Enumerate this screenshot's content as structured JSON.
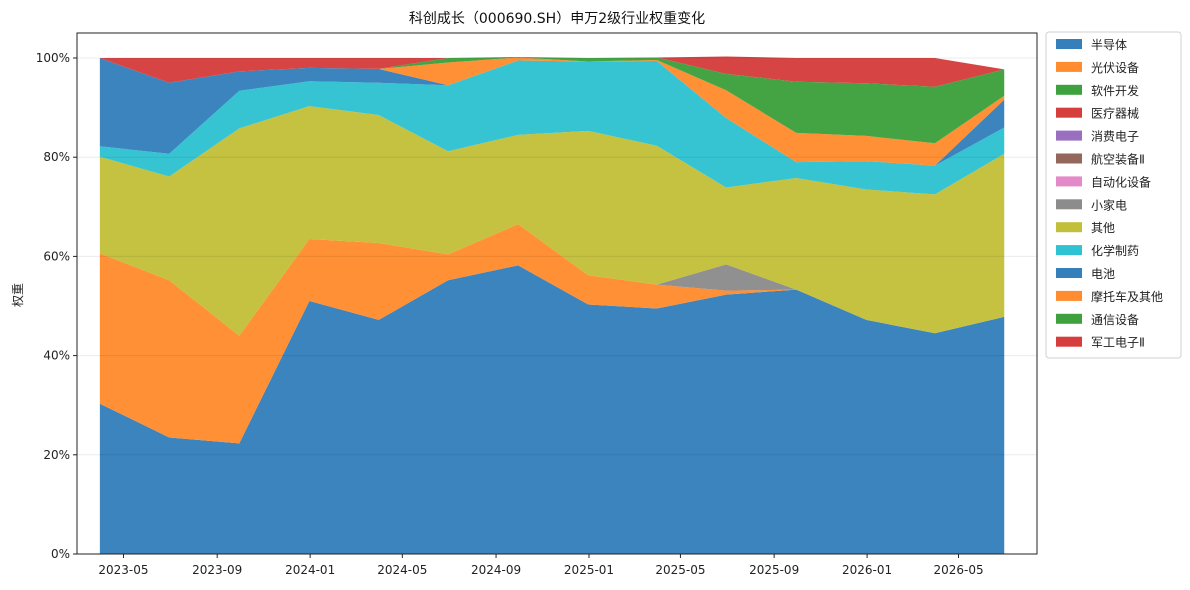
{
  "chart_data": {
    "type": "area",
    "title": "科创成长（000690.SH）申万2级行业权重变化",
    "xlabel": "",
    "ylabel": "权重",
    "ylim": [
      0,
      100
    ],
    "yticks": [
      0,
      20,
      40,
      60,
      80,
      100
    ],
    "ytick_labels": [
      "0%",
      "20%",
      "40%",
      "60%",
      "80%",
      "100%"
    ],
    "xlim": [
      "2023-03-01",
      "2026-08-12"
    ],
    "xticks": [
      "2023-05-01",
      "2023-09-01",
      "2024-01-01",
      "2024-05-01",
      "2024-09-01",
      "2025-01-01",
      "2025-05-01",
      "2025-09-01",
      "2026-01-01",
      "2026-05-01"
    ],
    "xtick_labels": [
      "2023-05",
      "2023-09",
      "2024-01",
      "2024-05",
      "2024-09",
      "2025-01",
      "2025-05",
      "2025-09",
      "2026-01",
      "2026-05"
    ],
    "grid": "horizontal",
    "legend_position": "outside-right",
    "x": [
      "2023-03-31",
      "2023-06-30",
      "2023-09-30",
      "2023-12-31",
      "2024-03-31",
      "2024-06-30",
      "2024-09-30",
      "2024-12-31",
      "2025-03-31",
      "2025-06-30",
      "2025-09-30",
      "2025-12-31",
      "2026-03-31",
      "2026-06-30"
    ],
    "series": [
      {
        "name": "半导体",
        "color": "#3580bb",
        "values": [
          30.3,
          23.5,
          22.3,
          51.0,
          47.2,
          55.2,
          58.2,
          50.3,
          49.5,
          52.3,
          53.3,
          47.2,
          44.5,
          47.8
        ]
      },
      {
        "name": "光伏设备",
        "color": "#ff8c2e",
        "values": [
          30.3,
          31.7,
          21.7,
          12.5,
          15.5,
          5.2,
          8.3,
          5.9,
          4.8,
          0.8,
          0,
          0,
          0,
          0
        ]
      },
      {
        "name": "软件开发",
        "color": "#3ea13e",
        "values": [
          0,
          0,
          0,
          0,
          0,
          0,
          0,
          0,
          0,
          0,
          0,
          0,
          0,
          0
        ]
      },
      {
        "name": "医疗器械",
        "color": "#d63e3e",
        "values": [
          0,
          0,
          0,
          0,
          0,
          0,
          0,
          0,
          0,
          0,
          0,
          0,
          0,
          0
        ]
      },
      {
        "name": "消费电子",
        "color": "#9a6fc0",
        "values": [
          0,
          0,
          0,
          0,
          0,
          0,
          0,
          0,
          0,
          0,
          0,
          0,
          0,
          0
        ]
      },
      {
        "name": "航空装备Ⅱ",
        "color": "#94675d",
        "values": [
          0,
          0,
          0,
          0,
          0,
          0,
          0,
          0,
          0,
          0,
          0,
          0,
          0,
          0
        ]
      },
      {
        "name": "自动化设备",
        "color": "#e58ac9",
        "values": [
          0,
          0,
          0,
          0,
          0,
          0,
          0,
          0,
          0,
          0,
          0,
          0,
          0,
          0
        ]
      },
      {
        "name": "小家电",
        "color": "#8c8c8c",
        "values": [
          0,
          0,
          0,
          0,
          0,
          0,
          0,
          0,
          0,
          5.3,
          0,
          0,
          0,
          0
        ]
      },
      {
        "name": "其他",
        "color": "#c2c03a",
        "values": [
          19.5,
          20.9,
          41.8,
          26.8,
          25.8,
          20.8,
          18.0,
          29.1,
          28.0,
          15.5,
          22.5,
          26.3,
          28.0,
          32.9
        ]
      },
      {
        "name": "化学制药",
        "color": "#2fc2d2",
        "values": [
          2.1,
          4.6,
          7.6,
          5.0,
          6.5,
          13.3,
          15.0,
          14.0,
          17.1,
          14.0,
          3.2,
          5.7,
          5.8,
          5.3
        ]
      },
      {
        "name": "电池",
        "color": "#3580bb",
        "values": [
          17.8,
          14.3,
          3.9,
          2.7,
          2.8,
          0,
          0,
          0,
          0,
          0,
          0,
          0,
          0,
          5.6
        ]
      },
      {
        "name": "摩托车及其他",
        "color": "#ff8c2e",
        "values": [
          0,
          0,
          0,
          0,
          0,
          4.6,
          0.6,
          0,
          0.2,
          5.6,
          5.9,
          5.1,
          4.5,
          0.8
        ]
      },
      {
        "name": "通信设备",
        "color": "#3ea13e",
        "values": [
          0,
          0,
          0,
          0,
          0,
          0.9,
          0.1,
          0.7,
          0.5,
          3.3,
          10.3,
          10.6,
          11.4,
          5.3
        ]
      },
      {
        "name": "军工电子Ⅱ",
        "color": "#d63e3e",
        "values": [
          0,
          5.0,
          2.7,
          2.0,
          2.2,
          0,
          0,
          0,
          0,
          3.5,
          4.8,
          5.1,
          5.8,
          0
        ]
      }
    ]
  }
}
